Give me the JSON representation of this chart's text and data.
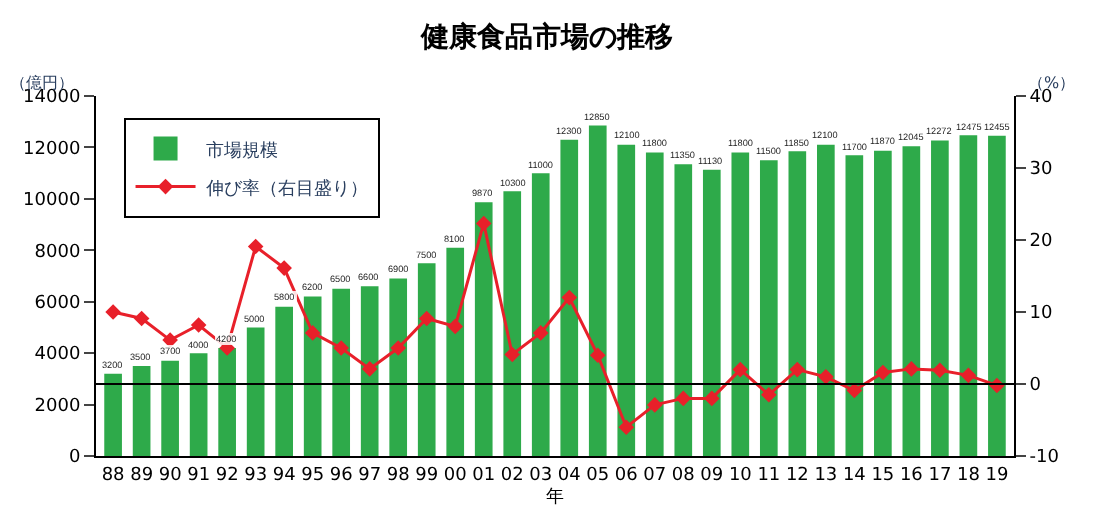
{
  "chart_data": {
    "type": "bar",
    "title": "健康食品市場の推移",
    "xlabel": "年",
    "ylabel": "（億円）",
    "y2label": "（%）",
    "categories": [
      "88",
      "89",
      "90",
      "91",
      "92",
      "93",
      "94",
      "95",
      "96",
      "97",
      "98",
      "99",
      "00",
      "01",
      "02",
      "03",
      "04",
      "05",
      "06",
      "07",
      "08",
      "09",
      "10",
      "11",
      "12",
      "13",
      "14",
      "15",
      "16",
      "17",
      "18",
      "19"
    ],
    "series": [
      {
        "name": "市場規模",
        "color": "#2eaa4a",
        "data_labels": true,
        "values": [
          3200,
          3500,
          3700,
          4000,
          4200,
          5000,
          5800,
          6200,
          6500,
          6600,
          6900,
          7500,
          8100,
          9870,
          10300,
          11000,
          12300,
          12850,
          12100,
          11800,
          11350,
          11130,
          11800,
          11500,
          11850,
          12100,
          11700,
          11870,
          12045,
          12272,
          12475,
          12455
        ]
      },
      {
        "name": "伸び率（右目盛り）",
        "type": "line",
        "axis": "y2",
        "color": "#e8202a",
        "marker": "diamond",
        "values": [
          10,
          9.1,
          6.1,
          8.2,
          5,
          19.1,
          16.1,
          7.1,
          5,
          2.1,
          5,
          9.1,
          8,
          22.3,
          4.1,
          7.1,
          12,
          4,
          -6,
          -2.9,
          -2,
          -2,
          2,
          -1.5,
          2,
          1,
          -0.9,
          1.6,
          2.1,
          1.9,
          1.2,
          -0.2
        ]
      }
    ],
    "ylim": [
      0,
      14000
    ],
    "yticks": [
      0,
      2000,
      4000,
      6000,
      8000,
      10000,
      12000,
      14000
    ],
    "y2lim": [
      -10,
      40
    ],
    "y2ticks": [
      -10,
      0,
      10,
      20,
      30,
      40
    ],
    "ref_lines": [
      {
        "axis": "y2",
        "value": 0,
        "color": "#000000"
      }
    ],
    "legend": "top left"
  }
}
